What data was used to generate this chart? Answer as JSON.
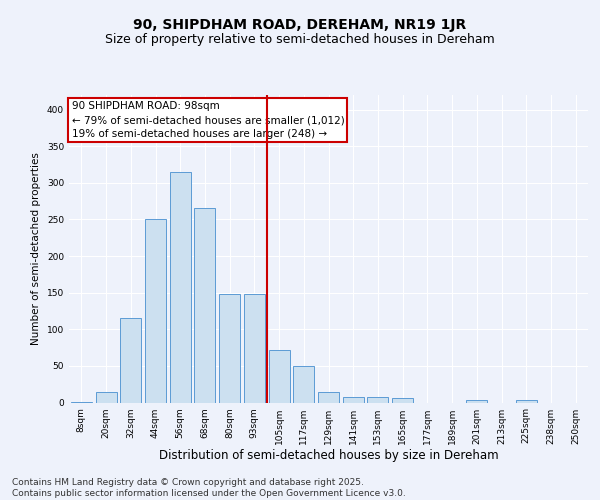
{
  "title1": "90, SHIPDHAM ROAD, DEREHAM, NR19 1JR",
  "title2": "Size of property relative to semi-detached houses in Dereham",
  "xlabel": "Distribution of semi-detached houses by size in Dereham",
  "ylabel": "Number of semi-detached properties",
  "bins": [
    "8sqm",
    "20sqm",
    "32sqm",
    "44sqm",
    "56sqm",
    "68sqm",
    "80sqm",
    "93sqm",
    "105sqm",
    "117sqm",
    "129sqm",
    "141sqm",
    "153sqm",
    "165sqm",
    "177sqm",
    "189sqm",
    "201sqm",
    "213sqm",
    "225sqm",
    "238sqm",
    "250sqm"
  ],
  "values": [
    1,
    14,
    115,
    250,
    315,
    265,
    148,
    148,
    72,
    50,
    15,
    8,
    7,
    6,
    0,
    0,
    4,
    0,
    3,
    0,
    0
  ],
  "bar_color": "#cce0f0",
  "bar_edge_color": "#5b9bd5",
  "subject_line_color": "#cc0000",
  "annotation_text": "90 SHIPDHAM ROAD: 98sqm\n← 79% of semi-detached houses are smaller (1,012)\n19% of semi-detached houses are larger (248) →",
  "annotation_box_color": "#ffffff",
  "annotation_box_edge": "#cc0000",
  "footer": "Contains HM Land Registry data © Crown copyright and database right 2025.\nContains public sector information licensed under the Open Government Licence v3.0.",
  "ylim": [
    0,
    420
  ],
  "background_color": "#eef2fb",
  "plot_background": "#eef2fb",
  "grid_color": "#ffffff",
  "title1_fontsize": 10,
  "title2_fontsize": 9,
  "xlabel_fontsize": 8.5,
  "ylabel_fontsize": 7.5,
  "tick_fontsize": 6.5,
  "annotation_fontsize": 7.5,
  "footer_fontsize": 6.5
}
